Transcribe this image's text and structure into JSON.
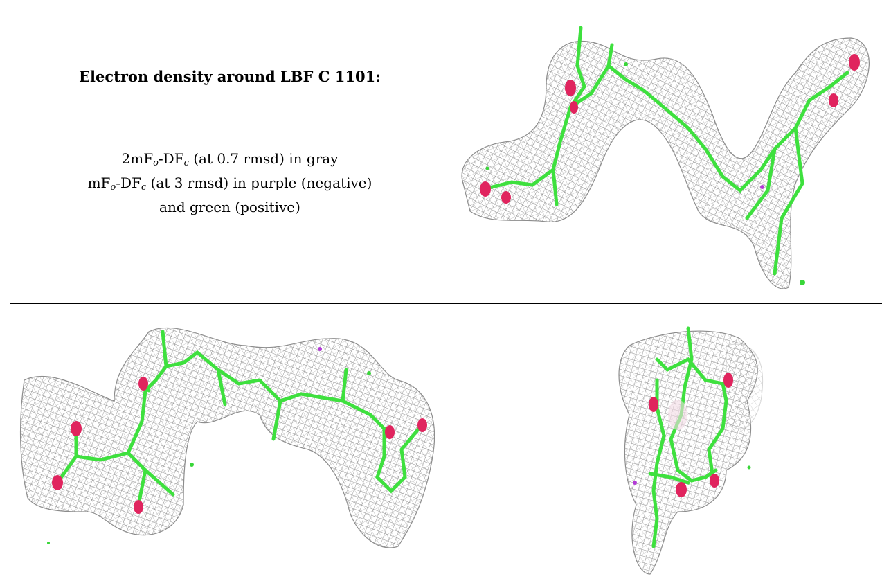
{
  "legend": {
    "title": "Electron density around LBF C 1101:",
    "line1": {
      "pre": "2mF",
      "sub1": "o",
      "mid": "-DF",
      "sub2": "c",
      "post": " (at 0.7 rmsd) in gray"
    },
    "line2": {
      "pre": "mF",
      "sub1": "o",
      "mid": "-DF",
      "sub2": "c",
      "post": " (at 3 rmsd) in purple (negative)"
    },
    "line3": "and green (positive)"
  },
  "colors": {
    "mesh": "#8c8c8c",
    "carbon": "#3ee03e",
    "oxygen": "#e0245e",
    "negative": "#b23ad6",
    "positive": "#39d639",
    "grid": "#000000"
  },
  "views": [
    {
      "id": "top-right",
      "label": ""
    },
    {
      "id": "bottom-left",
      "label": ""
    },
    {
      "id": "bottom-right",
      "label": ""
    }
  ]
}
